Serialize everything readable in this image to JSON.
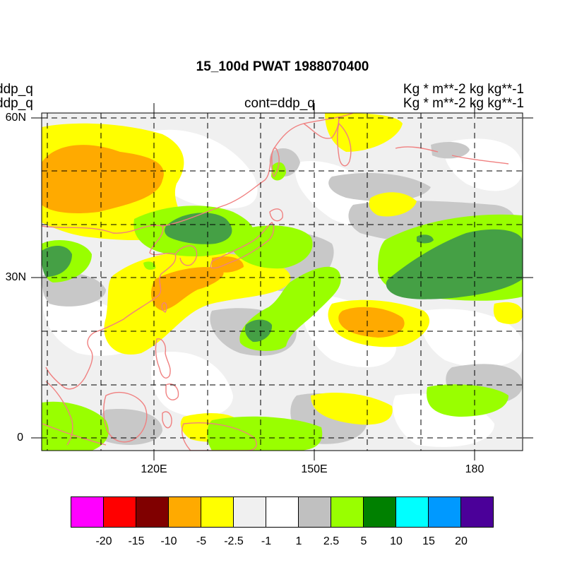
{
  "title": "15_100d PWAT  1988070400",
  "left_subtitle_1": "ddp_q",
  "left_subtitle_2": "ddp_q",
  "center_subtitle": "cont=ddp_q",
  "right_subtitle_1": "Kg  * m**-2 kg kg**-1",
  "right_subtitle_2": "Kg  * m**-2 kg kg**-1",
  "lat_labels": [
    "60N",
    "30N",
    "0"
  ],
  "lon_labels": [
    "120E",
    "150E",
    "180"
  ],
  "colorbar": {
    "colors": [
      "#ff00ff",
      "#ff0000",
      "#800000",
      "#ffaa00",
      "#ffff00",
      "#f0f0f0",
      "#ffffff",
      "#c0c0c0",
      "#99ff00",
      "#008000",
      "#00ffff",
      "#0099ff",
      "#4b0099"
    ],
    "labels": [
      "-20",
      "-15",
      "-10",
      "-5",
      "-2.5",
      "-1",
      "1",
      "2.5",
      "5",
      "10",
      "15",
      "20"
    ]
  },
  "map_colors": {
    "coastline": "#f08080",
    "neg_2_5_to_5": "#ffff00",
    "neg_5_to_10": "#ffaa00",
    "pos_2_5_to_5": "#99ff00",
    "pos_5_to_10": "#45a045",
    "neg_1_to_2_5": "#f0f0f0",
    "pos_1_to_2_5": "#c8c8c8"
  }
}
